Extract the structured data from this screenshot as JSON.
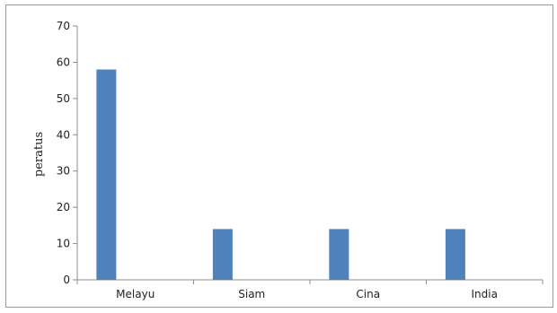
{
  "chart_data": {
    "type": "bar",
    "categories": [
      "Melayu",
      "Siam",
      "Cina",
      "India"
    ],
    "values": [
      58,
      14,
      14,
      14
    ],
    "title": "",
    "xlabel": "",
    "ylabel": "peratus",
    "ylim": [
      0,
      70
    ],
    "yticks": [
      0,
      10,
      20,
      30,
      40,
      50,
      60,
      70
    ],
    "grid": false,
    "legend": "none",
    "bar_color": "#4f81bd",
    "axis_color": "#8c8c8c"
  }
}
